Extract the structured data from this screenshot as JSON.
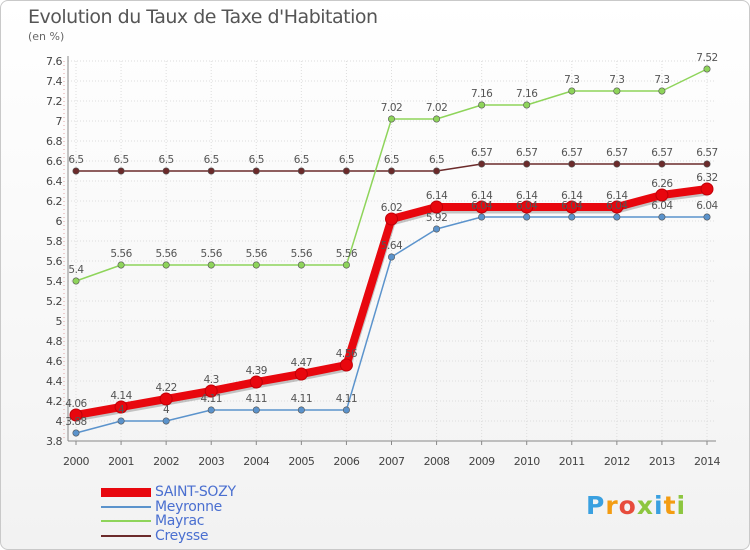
{
  "header": {
    "title": "Evolution du Taux de Taxe d'Habitation",
    "subtitle": "(en %)"
  },
  "logo": {
    "letters": [
      "P",
      "r",
      "o",
      "x",
      "i",
      "t",
      "i"
    ],
    "colors": [
      "#3aa0e0",
      "#f39c12",
      "#e74c3c",
      "#8dc63f",
      "#3aa0e0",
      "#f39c12",
      "#8dc63f"
    ]
  },
  "chart_data": {
    "type": "line",
    "categories": [
      "2000",
      "2001",
      "2002",
      "2003",
      "2004",
      "2005",
      "2006",
      "2007",
      "2008",
      "2009",
      "2010",
      "2011",
      "2012",
      "2013",
      "2014"
    ],
    "ylim": [
      3.8,
      7.6
    ],
    "y_ticks": [
      "3.8",
      "4",
      "4.2",
      "4.4",
      "4.6",
      "4.8",
      "5",
      "5.2",
      "5.4",
      "5.6",
      "5.8",
      "6",
      "6.2",
      "6.4",
      "6.6",
      "6.8",
      "7",
      "7.2",
      "7.4",
      "7.6"
    ],
    "grid": true,
    "legend_position": "bottom-left",
    "series": [
      {
        "name": "Creysse",
        "color": "#6b2a2a",
        "values": [
          6.5,
          6.5,
          6.5,
          6.5,
          6.5,
          6.5,
          6.5,
          6.5,
          6.5,
          6.57,
          6.57,
          6.57,
          6.57,
          6.57,
          6.57
        ],
        "labels": [
          "6.5",
          "6.5",
          "6.5",
          "6.5",
          "6.5",
          "6.5",
          "6.5",
          "6.5",
          "6.5",
          "6.57",
          "6.57",
          "6.57",
          "6.57",
          "6.57",
          "6.57"
        ]
      },
      {
        "name": "Mayrac",
        "color": "#8ed45a",
        "values": [
          5.4,
          5.56,
          5.56,
          5.56,
          5.56,
          5.56,
          5.56,
          7.02,
          7.02,
          7.16,
          7.16,
          7.3,
          7.3,
          7.3,
          7.52
        ],
        "labels": [
          "5.4",
          "5.56",
          "5.56",
          "5.56",
          "5.56",
          "5.56",
          "5.56",
          "7.02",
          "7.02",
          "7.16",
          "7.16",
          "7.3",
          "7.3",
          "7.3",
          "7.52"
        ]
      },
      {
        "name": "Meyronne",
        "color": "#5b93cc",
        "values": [
          3.88,
          4,
          4,
          4.11,
          4.11,
          4.11,
          4.11,
          5.64,
          5.92,
          6.04,
          6.04,
          6.04,
          6.04,
          6.04,
          6.04
        ],
        "labels": [
          "3.88",
          "4",
          "4",
          "4.11",
          "4.11",
          "4.11",
          "4.11",
          "5.64",
          "5.92",
          "6.04",
          "6.04",
          "6.04",
          "6.04",
          "6.04",
          "6.04"
        ]
      },
      {
        "name": "SAINT-SOZY",
        "color": "#e8070e",
        "values": [
          4.06,
          4.14,
          4.22,
          4.3,
          4.39,
          4.47,
          4.56,
          6.02,
          6.14,
          6.14,
          6.14,
          6.14,
          6.14,
          6.26,
          6.32
        ],
        "labels": [
          "4.06",
          "4.14",
          "4.22",
          "4.3",
          "4.39",
          "4.47",
          "4.56",
          "6.02",
          "6.14",
          "6.14",
          "6.14",
          "6.14",
          "6.14",
          "6.26",
          "6.32"
        ]
      }
    ],
    "legend": [
      "SAINT-SOZY",
      "Meyronne",
      "Mayrac",
      "Creysse"
    ]
  }
}
